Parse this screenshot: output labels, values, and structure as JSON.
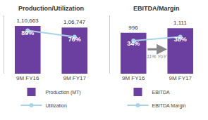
{
  "chart_data": [
    {
      "type": "bar",
      "title": "Production/Utilization",
      "categories": [
        "9M FY16",
        "9M FY17"
      ],
      "series": [
        {
          "name": "Production (MT)",
          "type": "bar",
          "color": "#6b3fa0",
          "values": [
            110663,
            106747
          ],
          "value_labels": [
            "1,10,663",
            "1,06,747"
          ]
        },
        {
          "name": "Utilization",
          "type": "line",
          "axis": "y2",
          "color": "#a8d4e6",
          "marker": "circle",
          "values": [
            89,
            76
          ],
          "value_labels": [
            "89%",
            "76%"
          ]
        }
      ],
      "ylim": [
        0,
        135008.86
      ],
      "y2lim": [
        0,
        120
      ],
      "data_labels": true,
      "tick_labels": "x",
      "grid": false,
      "legend": "bottom"
    },
    {
      "type": "bar",
      "title": "EBITDA/Margin",
      "categories": [
        "9M FY16",
        "9M FY17"
      ],
      "series": [
        {
          "name": "EBITDA",
          "type": "bar",
          "color": "#6b3fa0",
          "values": [
            996,
            1111
          ],
          "value_labels": [
            "996",
            "1,111"
          ]
        },
        {
          "name": "EBITDA Margin",
          "type": "line",
          "axis": "y2",
          "color": "#a8d4e6",
          "marker": "circle",
          "values": [
            34,
            38
          ],
          "value_labels": [
            "34%",
            "38%"
          ]
        }
      ],
      "annotations": [
        "11% YoY"
      ],
      "ylim": [
        0,
        1422.08
      ],
      "y2lim": [
        0,
        60
      ],
      "data_labels": true,
      "tick_labels": "x",
      "grid": false,
      "legend": "bottom"
    }
  ]
}
